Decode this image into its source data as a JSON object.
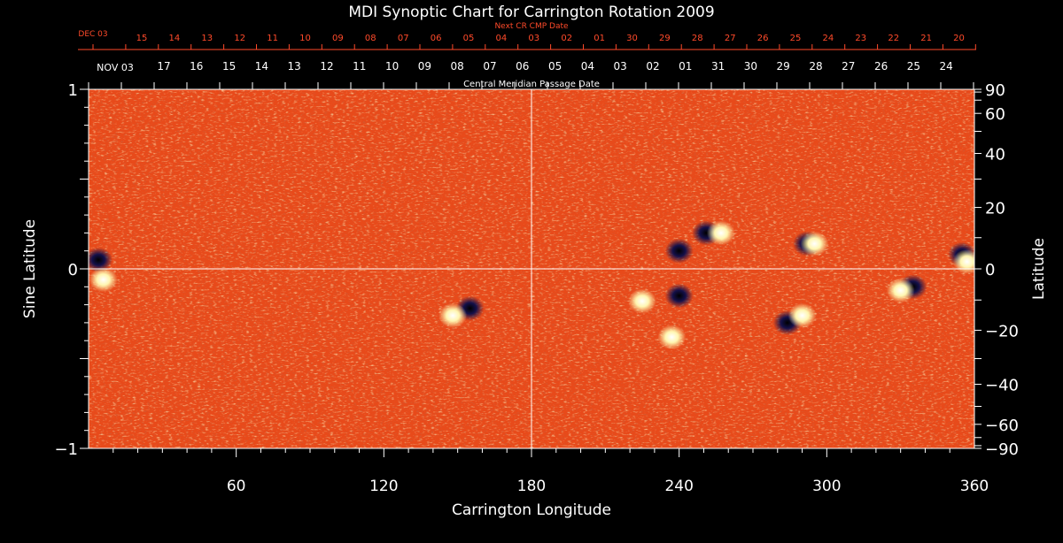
{
  "chart_data": {
    "type": "heatmap",
    "title": "MDI Synoptic Chart for Carrington Rotation 2009",
    "xlabel": "Carrington Longitude",
    "ylabel_left": "Sine Latitude",
    "ylabel_right": "Latitude",
    "xlim": [
      0,
      360
    ],
    "ylim": [
      -1,
      1
    ],
    "x_ticks": [
      "60",
      "120",
      "180",
      "240",
      "300",
      "360"
    ],
    "y_left_ticks": [
      "1",
      "0",
      "−1"
    ],
    "y_right_ticks": [
      "90",
      "60",
      "40",
      "20",
      "0",
      "−20",
      "−40",
      "−60",
      "−90"
    ],
    "top_axis_label": "Central Meridian Passage Date",
    "top_axis_start_label": "NOV 03",
    "top_axis_days": [
      "17",
      "16",
      "15",
      "14",
      "13",
      "12",
      "11",
      "10",
      "09",
      "08",
      "07",
      "06",
      "05",
      "04",
      "03",
      "02",
      "01",
      "31",
      "30",
      "29",
      "28",
      "27",
      "26",
      "25",
      "24"
    ],
    "next_cr_label": "Next CR CMP Date",
    "next_cr_start_label": "DEC 03",
    "next_cr_days": [
      "15",
      "14",
      "13",
      "12",
      "11",
      "10",
      "09",
      "08",
      "07",
      "06",
      "05",
      "04",
      "03",
      "02",
      "01",
      "30",
      "29",
      "28",
      "27",
      "26",
      "25",
      "24",
      "23",
      "22",
      "21",
      "20"
    ],
    "colors": {
      "background": "#000000",
      "map_base": "#e84a1a",
      "positive_polarity": "#fff6b0",
      "negative_polarity": "#14104a",
      "red_axis": "#ff4a2a",
      "axis": "#ffffff"
    },
    "active_regions": [
      {
        "lon": 4,
        "sinlat": 0.05,
        "polarity": "negative"
      },
      {
        "lon": 6,
        "sinlat": -0.06,
        "polarity": "positive"
      },
      {
        "lon": 155,
        "sinlat": -0.22,
        "polarity": "negative"
      },
      {
        "lon": 148,
        "sinlat": -0.26,
        "polarity": "positive"
      },
      {
        "lon": 240,
        "sinlat": -0.15,
        "polarity": "negative"
      },
      {
        "lon": 225,
        "sinlat": -0.18,
        "polarity": "positive"
      },
      {
        "lon": 251,
        "sinlat": 0.2,
        "polarity": "negative"
      },
      {
        "lon": 257,
        "sinlat": 0.2,
        "polarity": "positive"
      },
      {
        "lon": 240,
        "sinlat": 0.1,
        "polarity": "negative"
      },
      {
        "lon": 237,
        "sinlat": -0.38,
        "polarity": "positive"
      },
      {
        "lon": 284,
        "sinlat": -0.3,
        "polarity": "negative"
      },
      {
        "lon": 290,
        "sinlat": -0.26,
        "polarity": "positive"
      },
      {
        "lon": 292,
        "sinlat": 0.14,
        "polarity": "negative"
      },
      {
        "lon": 295,
        "sinlat": 0.14,
        "polarity": "positive"
      },
      {
        "lon": 355,
        "sinlat": 0.08,
        "polarity": "negative"
      },
      {
        "lon": 357,
        "sinlat": 0.04,
        "polarity": "positive"
      },
      {
        "lon": 335,
        "sinlat": -0.1,
        "polarity": "negative"
      },
      {
        "lon": 330,
        "sinlat": -0.12,
        "polarity": "positive"
      }
    ]
  }
}
